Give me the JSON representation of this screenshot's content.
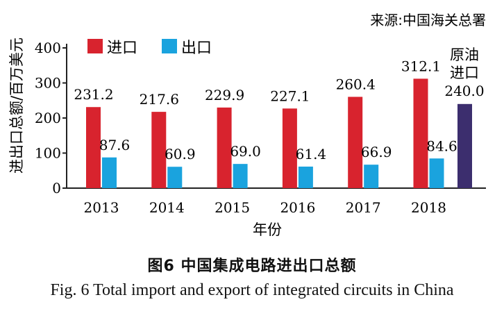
{
  "source": "来源:中国海关总署",
  "caption_cn": "图6 中国集成电路进出口总额",
  "caption_en": "Fig. 6 Total import and export of integrated circuits in China",
  "colors": {
    "import": "#d8232e",
    "export": "#1aa3de",
    "crude_oil": "#3c2e6e",
    "axis": "#222222"
  },
  "chart_data": {
    "type": "bar",
    "title": "",
    "xlabel": "年份",
    "ylabel": "进出口总额/百万美元",
    "ylim": [
      0,
      400
    ],
    "yticks": [
      0,
      100,
      200,
      300,
      400
    ],
    "grid": false,
    "legend_position": "top-left",
    "categories": [
      "2013",
      "2014",
      "2015",
      "2016",
      "2017",
      "2018"
    ],
    "series": [
      {
        "name": "进口",
        "values": [
          231.2,
          217.6,
          229.9,
          227.1,
          260.4,
          312.1
        ],
        "labels": [
          "231.2",
          "217.6",
          "229.9",
          "227.1",
          "260.4",
          "312.1"
        ]
      },
      {
        "name": "出口",
        "values": [
          87.6,
          60.9,
          69.0,
          61.4,
          66.9,
          84.6
        ],
        "labels": [
          "87.6",
          "60.9",
          "69.0",
          "61.4",
          "66.9",
          "84.6"
        ]
      }
    ],
    "annotation_bar": {
      "label_line1": "原油",
      "label_line2": "进口",
      "value": 240.0,
      "value_label": "240.0"
    }
  }
}
